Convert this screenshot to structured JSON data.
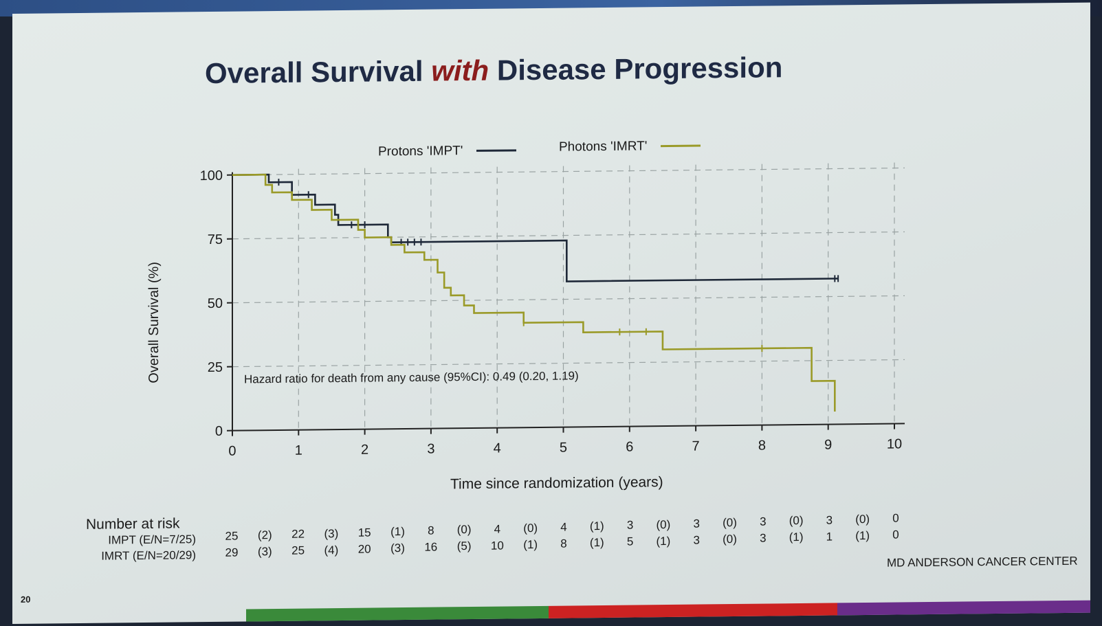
{
  "slide": {
    "title_part1": "Overall Survival ",
    "title_part2": "with",
    "title_part3": " Disease Progression",
    "page_number": "20",
    "footer": "MD ANDERSON CANCER CENTER",
    "number_at_risk_label": "Number at risk",
    "bottom_bar_colors": [
      "#3a8a3a",
      "#cc2222",
      "#6a2d8a"
    ]
  },
  "chart_data": {
    "type": "line",
    "xlabel": "Time since randomization (years)",
    "ylabel": "Overall Survival (%)",
    "xlim": [
      0,
      10
    ],
    "ylim": [
      0,
      100
    ],
    "x_ticks": [
      "0",
      "1",
      "2",
      "3",
      "4",
      "5",
      "6",
      "7",
      "8",
      "9",
      "10"
    ],
    "y_ticks": [
      "0",
      "25",
      "50",
      "75",
      "100"
    ],
    "grid": "dashed",
    "legend_position": "top",
    "annotation": "Hazard ratio for death from any cause (95%CI): 0.49 (0.20, 1.19)",
    "series": [
      {
        "name": "Protons 'IMPT'",
        "color": "#1e2838",
        "steps": [
          [
            0,
            100
          ],
          [
            0.55,
            100
          ],
          [
            0.55,
            97
          ],
          [
            0.9,
            97
          ],
          [
            0.9,
            92
          ],
          [
            1.25,
            92
          ],
          [
            1.25,
            88
          ],
          [
            1.55,
            88
          ],
          [
            1.55,
            84
          ],
          [
            1.6,
            84
          ],
          [
            1.6,
            80
          ],
          [
            2.35,
            80
          ],
          [
            2.35,
            75
          ],
          [
            2.4,
            75
          ],
          [
            2.4,
            73
          ],
          [
            5.05,
            73
          ],
          [
            5.05,
            57
          ],
          [
            9.15,
            57
          ]
        ],
        "censor_x": [
          0.7,
          1.15,
          1.8,
          1.9,
          2.0,
          2.55,
          2.65,
          2.75,
          2.85,
          9.1,
          9.15
        ]
      },
      {
        "name": "Photons 'IMRT'",
        "color": "#9a9a28",
        "steps": [
          [
            0,
            100
          ],
          [
            0.5,
            100
          ],
          [
            0.5,
            96
          ],
          [
            0.6,
            96
          ],
          [
            0.6,
            93
          ],
          [
            0.9,
            93
          ],
          [
            0.9,
            90
          ],
          [
            1.2,
            90
          ],
          [
            1.2,
            86
          ],
          [
            1.5,
            86
          ],
          [
            1.5,
            82
          ],
          [
            1.9,
            82
          ],
          [
            1.9,
            78
          ],
          [
            2.0,
            78
          ],
          [
            2.0,
            75
          ],
          [
            2.4,
            75
          ],
          [
            2.4,
            72
          ],
          [
            2.6,
            72
          ],
          [
            2.6,
            69
          ],
          [
            2.9,
            69
          ],
          [
            2.9,
            66
          ],
          [
            3.1,
            66
          ],
          [
            3.1,
            61
          ],
          [
            3.2,
            61
          ],
          [
            3.2,
            55
          ],
          [
            3.3,
            55
          ],
          [
            3.3,
            52
          ],
          [
            3.5,
            52
          ],
          [
            3.5,
            48
          ],
          [
            3.65,
            48
          ],
          [
            3.65,
            45
          ],
          [
            4.4,
            45
          ],
          [
            4.4,
            41
          ],
          [
            5.3,
            41
          ],
          [
            5.3,
            37
          ],
          [
            6.5,
            37
          ],
          [
            6.5,
            30
          ],
          [
            8.75,
            30
          ],
          [
            8.75,
            17
          ],
          [
            9.1,
            17
          ],
          [
            9.1,
            5
          ]
        ],
        "censor_x": [
          4.4,
          5.85,
          6.25,
          8.0
        ]
      }
    ]
  },
  "risk_table": {
    "rows": [
      {
        "label": "IMPT (E/N=7/25)",
        "values": [
          "25",
          "(2)",
          "22",
          "(3)",
          "15",
          "(1)",
          "8",
          "(0)",
          "4",
          "(0)",
          "4",
          "(1)",
          "3",
          "(0)",
          "3",
          "(0)",
          "3",
          "(0)",
          "3",
          "(0)",
          "0"
        ]
      },
      {
        "label": "IMRT (E/N=20/29)",
        "values": [
          "29",
          "(3)",
          "25",
          "(4)",
          "20",
          "(3)",
          "16",
          "(5)",
          "10",
          "(1)",
          "8",
          "(1)",
          "5",
          "(1)",
          "3",
          "(0)",
          "3",
          "(1)",
          "1",
          "(1)",
          "0"
        ]
      }
    ]
  }
}
